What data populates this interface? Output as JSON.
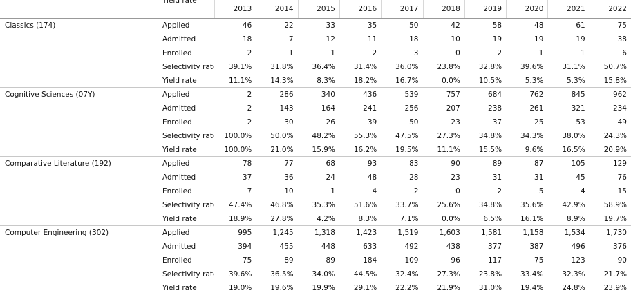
{
  "header": {
    "label": "Yield rate",
    "years": [
      "2013",
      "2014",
      "2015",
      "2016",
      "2017",
      "2018",
      "2019",
      "2020",
      "2021",
      "2022"
    ]
  },
  "groups": [
    {
      "name": "Classics (174)",
      "rows": [
        {
          "metric": "Applied",
          "values": [
            "46",
            "22",
            "33",
            "35",
            "50",
            "42",
            "58",
            "48",
            "61",
            "75"
          ]
        },
        {
          "metric": "Admitted",
          "values": [
            "18",
            "7",
            "12",
            "11",
            "18",
            "10",
            "19",
            "19",
            "19",
            "38"
          ]
        },
        {
          "metric": "Enrolled",
          "values": [
            "2",
            "1",
            "1",
            "2",
            "3",
            "0",
            "2",
            "1",
            "1",
            "6"
          ]
        },
        {
          "metric": "Selectivity rate",
          "values": [
            "39.1%",
            "31.8%",
            "36.4%",
            "31.4%",
            "36.0%",
            "23.8%",
            "32.8%",
            "39.6%",
            "31.1%",
            "50.7%"
          ]
        },
        {
          "metric": "Yield rate",
          "values": [
            "11.1%",
            "14.3%",
            "8.3%",
            "18.2%",
            "16.7%",
            "0.0%",
            "10.5%",
            "5.3%",
            "5.3%",
            "15.8%"
          ]
        }
      ]
    },
    {
      "name": "Cognitive Sciences (07Y)",
      "rows": [
        {
          "metric": "Applied",
          "values": [
            "2",
            "286",
            "340",
            "436",
            "539",
            "757",
            "684",
            "762",
            "845",
            "962"
          ]
        },
        {
          "metric": "Admitted",
          "values": [
            "2",
            "143",
            "164",
            "241",
            "256",
            "207",
            "238",
            "261",
            "321",
            "234"
          ]
        },
        {
          "metric": "Enrolled",
          "values": [
            "2",
            "30",
            "26",
            "39",
            "50",
            "23",
            "37",
            "25",
            "53",
            "49"
          ]
        },
        {
          "metric": "Selectivity rate",
          "values": [
            "100.0%",
            "50.0%",
            "48.2%",
            "55.3%",
            "47.5%",
            "27.3%",
            "34.8%",
            "34.3%",
            "38.0%",
            "24.3%"
          ]
        },
        {
          "metric": "Yield rate",
          "values": [
            "100.0%",
            "21.0%",
            "15.9%",
            "16.2%",
            "19.5%",
            "11.1%",
            "15.5%",
            "9.6%",
            "16.5%",
            "20.9%"
          ]
        }
      ]
    },
    {
      "name": "Comparative Literature (192)",
      "rows": [
        {
          "metric": "Applied",
          "values": [
            "78",
            "77",
            "68",
            "93",
            "83",
            "90",
            "89",
            "87",
            "105",
            "129"
          ]
        },
        {
          "metric": "Admitted",
          "values": [
            "37",
            "36",
            "24",
            "48",
            "28",
            "23",
            "31",
            "31",
            "45",
            "76"
          ]
        },
        {
          "metric": "Enrolled",
          "values": [
            "7",
            "10",
            "1",
            "4",
            "2",
            "0",
            "2",
            "5",
            "4",
            "15"
          ]
        },
        {
          "metric": "Selectivity rate",
          "values": [
            "47.4%",
            "46.8%",
            "35.3%",
            "51.6%",
            "33.7%",
            "25.6%",
            "34.8%",
            "35.6%",
            "42.9%",
            "58.9%"
          ]
        },
        {
          "metric": "Yield rate",
          "values": [
            "18.9%",
            "27.8%",
            "4.2%",
            "8.3%",
            "7.1%",
            "0.0%",
            "6.5%",
            "16.1%",
            "8.9%",
            "19.7%"
          ]
        }
      ]
    },
    {
      "name": "Computer Engineering (302)",
      "rows": [
        {
          "metric": "Applied",
          "values": [
            "995",
            "1,245",
            "1,318",
            "1,423",
            "1,519",
            "1,603",
            "1,581",
            "1,158",
            "1,534",
            "1,730"
          ]
        },
        {
          "metric": "Admitted",
          "values": [
            "394",
            "455",
            "448",
            "633",
            "492",
            "438",
            "377",
            "387",
            "496",
            "376"
          ]
        },
        {
          "metric": "Enrolled",
          "values": [
            "75",
            "89",
            "89",
            "184",
            "109",
            "96",
            "117",
            "75",
            "123",
            "90"
          ]
        },
        {
          "metric": "Selectivity rate",
          "values": [
            "39.6%",
            "36.5%",
            "34.0%",
            "44.5%",
            "32.4%",
            "27.3%",
            "23.8%",
            "33.4%",
            "32.3%",
            "21.7%"
          ]
        },
        {
          "metric": "Yield rate",
          "values": [
            "19.0%",
            "19.6%",
            "19.9%",
            "29.1%",
            "22.2%",
            "21.9%",
            "31.0%",
            "19.4%",
            "24.8%",
            "23.9%"
          ]
        }
      ]
    }
  ]
}
